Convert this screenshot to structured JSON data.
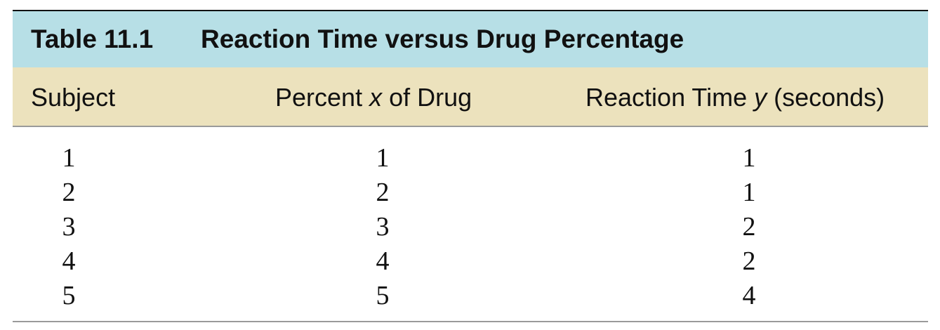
{
  "table": {
    "number": "Table 11.1",
    "title": "Reaction Time versus Drug Percentage",
    "header": {
      "subject": "Subject",
      "percent_pre": "Percent ",
      "percent_var": "x",
      "percent_post": " of Drug",
      "reaction_pre": "Reaction Time ",
      "reaction_var": "y",
      "reaction_post": " (seconds)"
    },
    "rows": [
      {
        "subject": "1",
        "percent": "1",
        "reaction": "1"
      },
      {
        "subject": "2",
        "percent": "2",
        "reaction": "1"
      },
      {
        "subject": "3",
        "percent": "3",
        "reaction": "2"
      },
      {
        "subject": "4",
        "percent": "4",
        "reaction": "2"
      },
      {
        "subject": "5",
        "percent": "5",
        "reaction": "4"
      }
    ],
    "colors": {
      "title_background": "#b7dfe6",
      "header_background": "#ece2bd",
      "rule": "#111111"
    }
  }
}
